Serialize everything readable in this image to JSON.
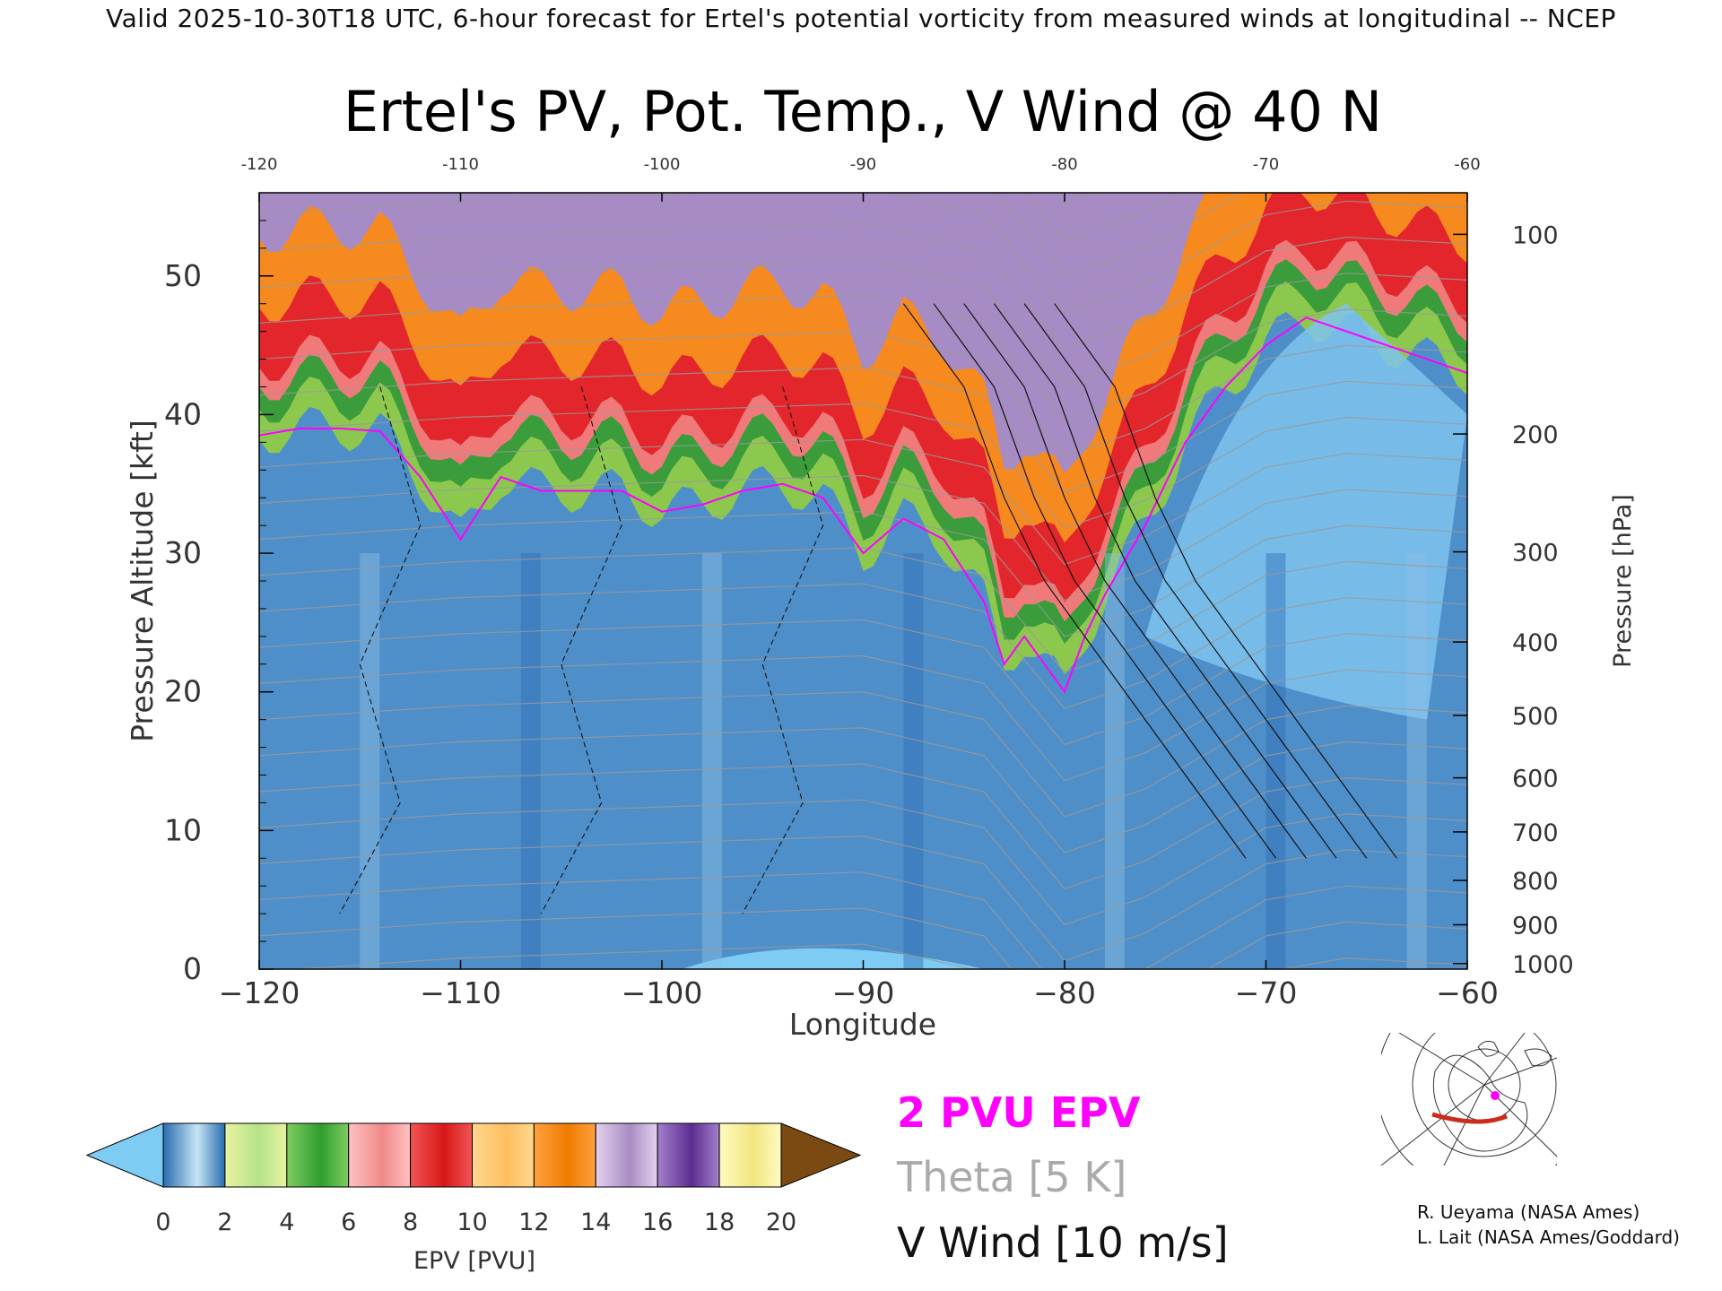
{
  "banner": "Valid 2025-10-30T18 UTC, 6-hour forecast for Ertel's potential vorticity from measured winds at longitudinal -- NCEP",
  "chart_data": {
    "type": "heatmap",
    "title": "Ertel's PV, Pot. Temp., V Wind @ 40 N",
    "xlabel": "Longitude",
    "ylabel": "Pressure Altitude [kft]",
    "y2label": "Pressure [hPa]",
    "xlim": [
      -120,
      -60
    ],
    "ylim": [
      0,
      56
    ],
    "x_ticks": [
      -120,
      -110,
      -100,
      -90,
      -80,
      -70,
      -60
    ],
    "y_ticks": [
      0,
      10,
      20,
      30,
      40,
      50
    ],
    "pressure_ticks": [
      {
        "hPa": "100",
        "kft": 53.0
      },
      {
        "hPa": "200",
        "kft": 38.6
      },
      {
        "hPa": "300",
        "kft": 30.1
      },
      {
        "hPa": "400",
        "kft": 23.6
      },
      {
        "hPa": "500",
        "kft": 18.3
      },
      {
        "hPa": "600",
        "kft": 13.8
      },
      {
        "hPa": "700",
        "kft": 9.9
      },
      {
        "hPa": "800",
        "kft": 6.4
      },
      {
        "hPa": "900",
        "kft": 3.2
      },
      {
        "hPa": "1000",
        "kft": 0.4
      }
    ],
    "colorbar": {
      "label": "EPV [PVU]",
      "ticks": [
        "0",
        "2",
        "4",
        "6",
        "8",
        "10",
        "12",
        "14",
        "16",
        "18",
        "20"
      ],
      "segments": [
        [
          "#c6e5f4",
          "#2a6cb0"
        ],
        [
          "#b5e28a",
          "#e8f3a0"
        ],
        [
          "#2e9e2e",
          "#80cc60"
        ],
        [
          "#f08a8a",
          "#ffc0c0"
        ],
        [
          "#d81818",
          "#f05555"
        ],
        [
          "#ffbe60",
          "#ffd890"
        ],
        [
          "#f07c00",
          "#ffa040"
        ],
        [
          "#a98cc4",
          "#e3d2ef"
        ],
        [
          "#5c2d91",
          "#a37fcc"
        ],
        [
          "#f2e680",
          "#fffac0"
        ]
      ],
      "under_color": "#7ecbf3",
      "over_color": "#7a4a12"
    },
    "tropopause_profile": {
      "x": [
        -120,
        -118,
        -116,
        -114,
        -112,
        -110,
        -108,
        -106,
        -104,
        -102,
        -100,
        -98,
        -96,
        -94,
        -92,
        -90,
        -88,
        -86,
        -84,
        -83,
        -82,
        -81,
        -80,
        -79,
        -78,
        -76,
        -74,
        -72,
        -70,
        -68,
        -66,
        -64,
        -62,
        -60
      ],
      "kft": [
        38.5,
        39.0,
        39.0,
        38.8,
        35.5,
        31.0,
        35.5,
        34.5,
        34.5,
        34.5,
        33.0,
        33.5,
        34.5,
        35.0,
        34.0,
        30.0,
        32.5,
        31.0,
        26.5,
        22.0,
        24.0,
        22.0,
        20.0,
        24.0,
        27.0,
        32.0,
        38.0,
        42.0,
        45.0,
        47.0,
        46.0,
        45.0,
        44.0,
        43.0
      ]
    },
    "theta_profile": {
      "x": [
        -120,
        -110,
        -100,
        -90,
        -84,
        -80,
        -76,
        -70,
        -66,
        -60
      ],
      "kft": [
        31.0,
        32.0,
        32.5,
        33.0,
        31.0,
        24.0,
        26.0,
        31.0,
        32.0,
        31.5
      ]
    },
    "v_wind_jet": {
      "x": [
        -85,
        -82,
        -80,
        -78,
        -75,
        -72,
        -70,
        -68
      ],
      "kft": [
        48.0,
        42.0,
        34.0,
        28.0,
        22.0,
        16.0,
        12.0,
        8.0
      ]
    }
  },
  "legend": {
    "epv_label": "2 PVU EPV",
    "theta_label": "Theta [5 K]",
    "wind_label": "V Wind [10 m/s]",
    "epv_color": "#ff00ff",
    "theta_color": "#aaaaaa"
  },
  "credits": [
    "R. Ueyama (NASA Ames)",
    "L. Lait (NASA Ames/Goddard)"
  ]
}
